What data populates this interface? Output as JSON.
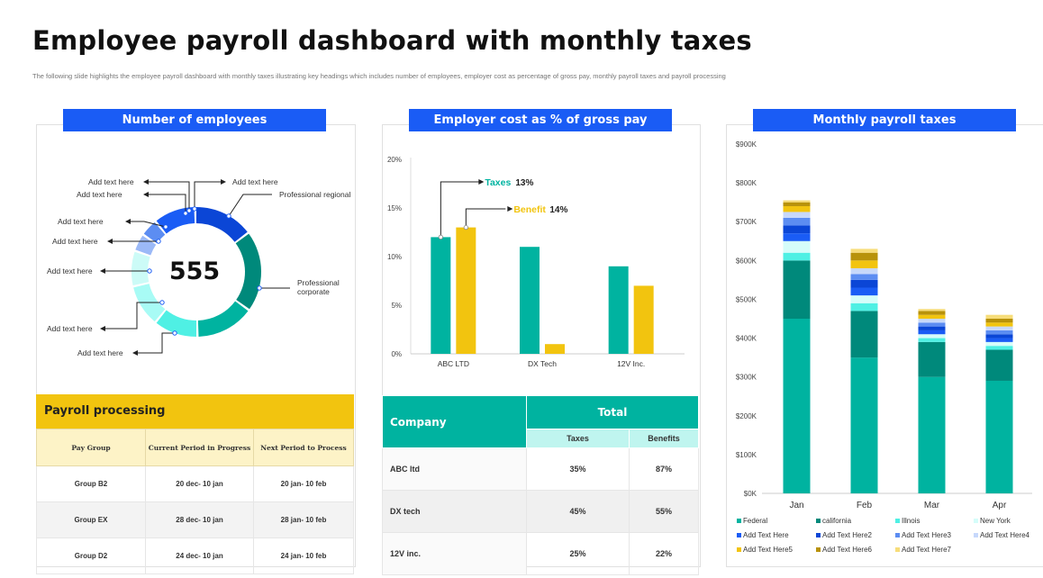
{
  "header": {
    "title": "Employee payroll dashboard with monthly taxes",
    "subtitle": "The  following slide highlights  the employee payroll dashboard  with  monthly taxes illustrating key headings which includes number of employees, employer cost as percentage of gross pay,  monthly payroll taxes and payroll processing"
  },
  "panels": {
    "employees": "Number of employees",
    "cost": "Employer cost as % of gross pay",
    "monthly": "Monthly payroll taxes"
  },
  "donut": {
    "total": "555",
    "labels": [
      "Add text here",
      "Add text here",
      "Professional regional",
      "Add text here",
      "Add text here",
      "Add text here",
      "Add text here",
      "Professional corporate",
      "Add text here",
      "Add text here"
    ],
    "colors": {
      "blue_dark": "#0b46d6",
      "teal_dark": "#00897b",
      "teal": "#00b3a0",
      "cyan": "#4ff0e4",
      "cyan_light": "#a8fbf5",
      "mint": "#ccfbf7",
      "blue_light": "#9bb9f7",
      "blue_mid": "#5c8df2",
      "blue": "#1a5cf5"
    }
  },
  "chart_data": [
    {
      "type": "bar",
      "title": "Employer cost as % of gross pay",
      "categories": [
        "ABC LTD",
        "DX Tech",
        "12V Inc."
      ],
      "series": [
        {
          "name": "Taxes",
          "values": [
            12,
            11,
            9
          ],
          "color": "#00b3a0"
        },
        {
          "name": "Benefit",
          "values": [
            13,
            1,
            7
          ],
          "color": "#f2c40f"
        }
      ],
      "ylim": [
        0,
        20
      ],
      "yticks": [
        "0%",
        "5%",
        "10%",
        "15%",
        "20%"
      ],
      "annotations": [
        {
          "series": "Taxes",
          "label": "Taxes",
          "value": "13%"
        },
        {
          "series": "Benefit",
          "label": "Benefit",
          "value": "14%"
        }
      ]
    },
    {
      "type": "bar",
      "stacked": true,
      "title": "Monthly payroll taxes",
      "categories": [
        "Jan",
        "Feb",
        "Mar",
        "Apr"
      ],
      "yticks": [
        "$0K",
        "$100K",
        "$200K",
        "$300K",
        "$400K",
        "$500K",
        "$600K",
        "$700K",
        "$800K",
        "$900K"
      ],
      "ylim": [
        0,
        900
      ],
      "series": [
        {
          "name": "Federal",
          "values": [
            450,
            350,
            300,
            290
          ],
          "color": "#00b3a0"
        },
        {
          "name": "california",
          "values": [
            150,
            120,
            90,
            80
          ],
          "color": "#00897b"
        },
        {
          "name": "Illnois",
          "values": [
            20,
            20,
            10,
            10
          ],
          "color": "#4ff0e4"
        },
        {
          "name": "New York",
          "values": [
            30,
            20,
            10,
            10
          ],
          "color": "#d5fdfa"
        },
        {
          "name": "Add Text Here",
          "values": [
            20,
            20,
            10,
            10
          ],
          "color": "#1a5cf5"
        },
        {
          "name": "Add Text Here2",
          "values": [
            20,
            20,
            10,
            10
          ],
          "color": "#0b46d6"
        },
        {
          "name": "Add Text Here3",
          "values": [
            20,
            15,
            10,
            10
          ],
          "color": "#5c8df2"
        },
        {
          "name": "Add Text Here4",
          "values": [
            15,
            15,
            10,
            10
          ],
          "color": "#c7d8fb"
        },
        {
          "name": "Add Text Here5",
          "values": [
            15,
            20,
            10,
            10
          ],
          "color": "#f2c40f"
        },
        {
          "name": "Add Text Here6",
          "values": [
            10,
            20,
            10,
            10
          ],
          "color": "#b8920b"
        },
        {
          "name": "Add Text Here7",
          "values": [
            5,
            10,
            5,
            10
          ],
          "color": "#f7dd7a"
        }
      ]
    }
  ],
  "payroll": {
    "title": "Payroll processing",
    "columns": [
      "Pay Group",
      "Current Period in Progress",
      "Next Period to Process"
    ],
    "rows": [
      [
        "Group B2",
        "20 dec- 10 jan",
        "20 jan- 10 feb"
      ],
      [
        "Group EX",
        "28 dec- 10 jan",
        "28 jan- 10 feb"
      ],
      [
        "Group D2",
        "24 dec- 10 jan",
        "24 jan- 10 feb"
      ]
    ]
  },
  "company": {
    "col_company": "Company",
    "col_total": "Total",
    "col_taxes": "Taxes",
    "col_benefits": "Benefits",
    "rows": [
      [
        "ABC ltd",
        "35%",
        "87%"
      ],
      [
        "DX tech",
        "45%",
        "55%"
      ],
      [
        "12V inc.",
        "25%",
        "22%"
      ]
    ]
  }
}
